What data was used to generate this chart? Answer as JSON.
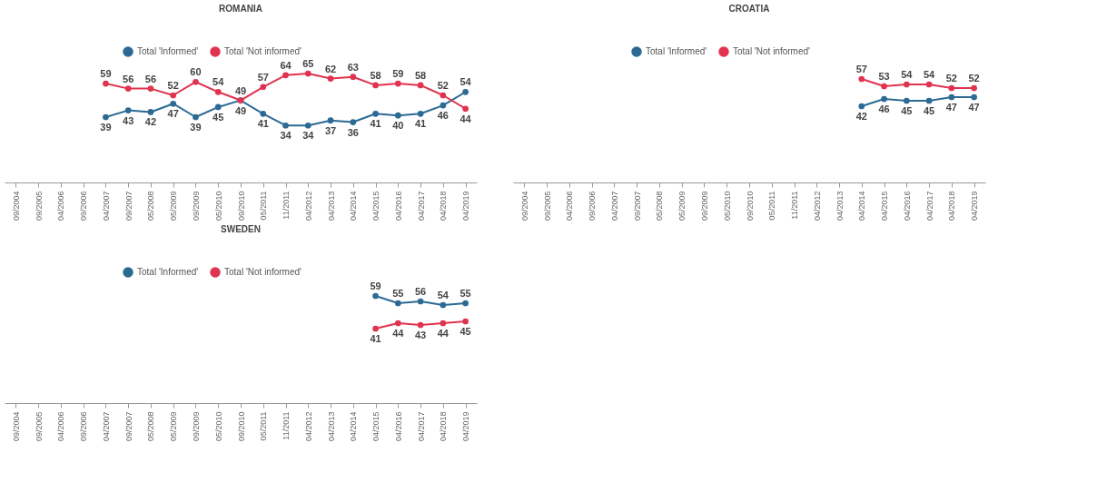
{
  "chart_data": [
    {
      "type": "line",
      "title": "ROMANIA",
      "categories": [
        "09/2004",
        "09/2005",
        "04/2006",
        "09/2006",
        "04/2007",
        "09/2007",
        "05/2008",
        "05/2009",
        "09/2009",
        "05/2010",
        "09/2010",
        "05/2011",
        "11/2011",
        "04/2012",
        "04/2013",
        "04/2014",
        "04/2015",
        "04/2016",
        "04/2017",
        "04/2018",
        "04/2019"
      ],
      "series": [
        {
          "name": "Total 'Informed'",
          "color": "#2c6a94",
          "values": [
            null,
            null,
            null,
            null,
            39,
            43,
            42,
            47,
            39,
            45,
            49,
            41,
            34,
            34,
            37,
            36,
            41,
            40,
            41,
            46,
            54
          ]
        },
        {
          "name": "Total 'Not informed'",
          "color": "#e0334f",
          "values": [
            null,
            null,
            null,
            null,
            59,
            56,
            56,
            52,
            60,
            54,
            49,
            57,
            64,
            65,
            62,
            63,
            58,
            59,
            58,
            52,
            44
          ]
        }
      ],
      "legend": "top",
      "marker": "circle",
      "data_labels": true,
      "grid": false
    },
    {
      "type": "line",
      "title": "CROATIA",
      "categories": [
        "09/2004",
        "09/2005",
        "04/2006",
        "09/2006",
        "04/2007",
        "09/2007",
        "05/2008",
        "05/2009",
        "09/2009",
        "05/2010",
        "09/2010",
        "05/2011",
        "11/2011",
        "04/2012",
        "04/2013",
        "04/2014",
        "04/2015",
        "04/2016",
        "04/2017",
        "04/2018",
        "04/2019"
      ],
      "series": [
        {
          "name": "Total 'Informed'",
          "color": "#2c6a94",
          "values": [
            null,
            null,
            null,
            null,
            null,
            null,
            null,
            null,
            null,
            null,
            null,
            null,
            null,
            null,
            null,
            42,
            46,
            45,
            45,
            47,
            47
          ]
        },
        {
          "name": "Total 'Not informed'",
          "color": "#e0334f",
          "values": [
            null,
            null,
            null,
            null,
            null,
            null,
            null,
            null,
            null,
            null,
            null,
            null,
            null,
            null,
            null,
            57,
            53,
            54,
            54,
            52,
            52
          ]
        }
      ],
      "legend": "top",
      "marker": "circle",
      "data_labels": true,
      "grid": false
    },
    {
      "type": "line",
      "title": "SWEDEN",
      "categories": [
        "09/2004",
        "09/2005",
        "04/2006",
        "09/2006",
        "04/2007",
        "09/2007",
        "05/2008",
        "05/2009",
        "09/2009",
        "05/2010",
        "09/2010",
        "05/2011",
        "11/2011",
        "04/2012",
        "04/2013",
        "04/2014",
        "04/2015",
        "04/2016",
        "04/2017",
        "04/2018",
        "04/2019"
      ],
      "series": [
        {
          "name": "Total 'Informed'",
          "color": "#2c6a94",
          "values": [
            null,
            null,
            null,
            null,
            null,
            null,
            null,
            null,
            null,
            null,
            null,
            null,
            null,
            null,
            null,
            null,
            59,
            55,
            56,
            54,
            55
          ]
        },
        {
          "name": "Total 'Not informed'",
          "color": "#e0334f",
          "values": [
            null,
            null,
            null,
            null,
            null,
            null,
            null,
            null,
            null,
            null,
            null,
            null,
            null,
            null,
            null,
            null,
            41,
            44,
            43,
            44,
            45
          ]
        }
      ],
      "legend": "top",
      "marker": "circle",
      "data_labels": true,
      "grid": false
    }
  ]
}
